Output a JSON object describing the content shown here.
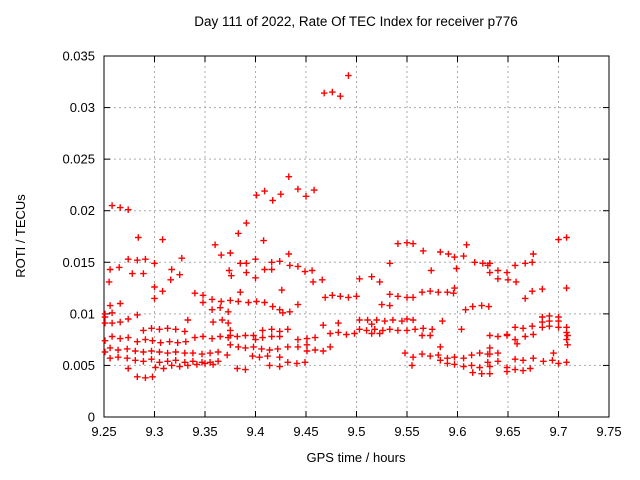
{
  "chart_data": {
    "type": "scatter",
    "title": "Day 111 of 2022, Rate Of TEC Index for receiver p776",
    "xlabel": "GPS time / hours",
    "ylabel": "ROTI / TECUs",
    "xlim": [
      9.25,
      9.75
    ],
    "ylim": [
      0,
      0.035
    ],
    "grid": true,
    "legend_position": "none",
    "marker": {
      "shape": "plus",
      "color": "#ff0000",
      "size": 6.6,
      "stroke_width": 1.4
    },
    "grid_color": "#aaaaaa",
    "axis_color": "#000000",
    "x_ticks": [
      {
        "value": 9.25,
        "label": "9.25"
      },
      {
        "value": 9.3,
        "label": "9.3"
      },
      {
        "value": 9.35,
        "label": "9.35"
      },
      {
        "value": 9.4,
        "label": "9.4"
      },
      {
        "value": 9.45,
        "label": "9.45"
      },
      {
        "value": 9.5,
        "label": "9.5"
      },
      {
        "value": 9.55,
        "label": "9.55"
      },
      {
        "value": 9.6,
        "label": "9.6"
      },
      {
        "value": 9.65,
        "label": "9.65"
      },
      {
        "value": 9.7,
        "label": "9.7"
      },
      {
        "value": 9.75,
        "label": "9.75"
      }
    ],
    "y_ticks": [
      {
        "value": 0,
        "label": "0"
      },
      {
        "value": 0.005,
        "label": "0.005"
      },
      {
        "value": 0.01,
        "label": "0.01"
      },
      {
        "value": 0.015,
        "label": "0.015"
      },
      {
        "value": 0.02,
        "label": "0.02"
      },
      {
        "value": 0.025,
        "label": "0.025"
      },
      {
        "value": 0.03,
        "label": "0.03"
      },
      {
        "value": 0.035,
        "label": "0.035"
      }
    ],
    "points": [
      [
        9.251,
        0.01
      ],
      [
        9.251,
        0.0097
      ],
      [
        9.251,
        0.0091
      ],
      [
        9.251,
        0.0074
      ],
      [
        9.251,
        0.0063
      ],
      [
        9.255,
        0.0131
      ],
      [
        9.256,
        0.0143
      ],
      [
        9.256,
        0.0108
      ],
      [
        9.256,
        0.0067
      ],
      [
        9.256,
        0.0057
      ],
      [
        9.258,
        0.0205
      ],
      [
        9.258,
        0.0101
      ],
      [
        9.258,
        0.0091
      ],
      [
        9.258,
        0.0078
      ],
      [
        9.265,
        0.0145
      ],
      [
        9.266,
        0.0203
      ],
      [
        9.266,
        0.011
      ],
      [
        9.266,
        0.0092
      ],
      [
        9.266,
        0.0076
      ],
      [
        9.264,
        0.0065
      ],
      [
        9.264,
        0.0058
      ],
      [
        9.274,
        0.0201
      ],
      [
        9.274,
        0.0153
      ],
      [
        9.278,
        0.0139
      ],
      [
        9.274,
        0.0095
      ],
      [
        9.274,
        0.0077
      ],
      [
        9.273,
        0.0066
      ],
      [
        9.273,
        0.0057
      ],
      [
        9.274,
        0.0047
      ],
      [
        9.284,
        0.0174
      ],
      [
        9.283,
        0.0152
      ],
      [
        9.283,
        0.0099
      ],
      [
        9.283,
        0.0073
      ],
      [
        9.281,
        0.0064
      ],
      [
        9.281,
        0.0055
      ],
      [
        9.283,
        0.0039
      ],
      [
        9.291,
        0.0153
      ],
      [
        9.289,
        0.0139
      ],
      [
        9.289,
        0.0084
      ],
      [
        9.291,
        0.0075
      ],
      [
        9.289,
        0.0063
      ],
      [
        9.289,
        0.0054
      ],
      [
        9.291,
        0.0038
      ],
      [
        9.3,
        0.0149
      ],
      [
        9.3,
        0.0126
      ],
      [
        9.3,
        0.0115
      ],
      [
        9.297,
        0.0086
      ],
      [
        9.298,
        0.0074
      ],
      [
        9.297,
        0.0064
      ],
      [
        9.297,
        0.0056
      ],
      [
        9.301,
        0.0048
      ],
      [
        9.298,
        0.0039
      ],
      [
        9.308,
        0.0172
      ],
      [
        9.308,
        0.0122
      ],
      [
        9.305,
        0.0085
      ],
      [
        9.306,
        0.0072
      ],
      [
        9.305,
        0.0063
      ],
      [
        9.305,
        0.0053
      ],
      [
        9.309,
        0.0047
      ],
      [
        9.317,
        0.0143
      ],
      [
        9.316,
        0.0133
      ],
      [
        9.313,
        0.0086
      ],
      [
        9.315,
        0.0073
      ],
      [
        9.313,
        0.0062
      ],
      [
        9.313,
        0.0054
      ],
      [
        9.317,
        0.005
      ],
      [
        9.327,
        0.0154
      ],
      [
        9.325,
        0.0138
      ],
      [
        9.321,
        0.0085
      ],
      [
        9.323,
        0.0072
      ],
      [
        9.321,
        0.0063
      ],
      [
        9.321,
        0.0055
      ],
      [
        9.325,
        0.0049
      ],
      [
        9.333,
        0.0094
      ],
      [
        9.33,
        0.0083
      ],
      [
        9.331,
        0.0073
      ],
      [
        9.33,
        0.0062
      ],
      [
        9.33,
        0.0053
      ],
      [
        9.333,
        0.005
      ],
      [
        9.34,
        0.012
      ],
      [
        9.34,
        0.0077
      ],
      [
        9.338,
        0.0062
      ],
      [
        9.338,
        0.0054
      ],
      [
        9.342,
        0.0051
      ],
      [
        9.348,
        0.0118
      ],
      [
        9.348,
        0.0111
      ],
      [
        9.348,
        0.0078
      ],
      [
        9.347,
        0.0061
      ],
      [
        9.347,
        0.0053
      ],
      [
        9.35,
        0.0052
      ],
      [
        9.36,
        0.0167
      ],
      [
        9.357,
        0.0114
      ],
      [
        9.357,
        0.0104
      ],
      [
        9.358,
        0.0092
      ],
      [
        9.357,
        0.0076
      ],
      [
        9.355,
        0.0062
      ],
      [
        9.355,
        0.0053
      ],
      [
        9.358,
        0.0051
      ],
      [
        9.366,
        0.0157
      ],
      [
        9.366,
        0.0112
      ],
      [
        9.365,
        0.0106
      ],
      [
        9.367,
        0.0094
      ],
      [
        9.365,
        0.0078
      ],
      [
        9.363,
        0.0063
      ],
      [
        9.363,
        0.0054
      ],
      [
        9.375,
        0.0159
      ],
      [
        9.374,
        0.0142
      ],
      [
        9.376,
        0.0137
      ],
      [
        9.375,
        0.0113
      ],
      [
        9.373,
        0.0102
      ],
      [
        9.373,
        0.0091
      ],
      [
        9.375,
        0.0084
      ],
      [
        9.375,
        0.0079
      ],
      [
        9.373,
        0.0077
      ],
      [
        9.375,
        0.007
      ],
      [
        9.372,
        0.006
      ],
      [
        9.383,
        0.0178
      ],
      [
        9.385,
        0.0149
      ],
      [
        9.385,
        0.0121
      ],
      [
        9.383,
        0.0112
      ],
      [
        9.382,
        0.0078
      ],
      [
        9.383,
        0.0068
      ],
      [
        9.382,
        0.0047
      ],
      [
        9.391,
        0.0188
      ],
      [
        9.391,
        0.0149
      ],
      [
        9.391,
        0.014
      ],
      [
        9.393,
        0.0111
      ],
      [
        9.39,
        0.0079
      ],
      [
        9.39,
        0.0067
      ],
      [
        9.39,
        0.0046
      ],
      [
        9.401,
        0.0215
      ],
      [
        9.4,
        0.0153
      ],
      [
        9.4,
        0.0135
      ],
      [
        9.401,
        0.0112
      ],
      [
        9.398,
        0.0079
      ],
      [
        9.4,
        0.0075
      ],
      [
        9.398,
        0.0068
      ],
      [
        9.397,
        0.0059
      ],
      [
        9.409,
        0.0219
      ],
      [
        9.408,
        0.0171
      ],
      [
        9.409,
        0.0143
      ],
      [
        9.409,
        0.0111
      ],
      [
        9.407,
        0.0084
      ],
      [
        9.407,
        0.0077
      ],
      [
        9.406,
        0.0066
      ],
      [
        9.404,
        0.0058
      ],
      [
        9.417,
        0.021
      ],
      [
        9.416,
        0.015
      ],
      [
        9.416,
        0.0143
      ],
      [
        9.417,
        0.0107
      ],
      [
        9.416,
        0.0085
      ],
      [
        9.416,
        0.0078
      ],
      [
        9.414,
        0.0065
      ],
      [
        9.412,
        0.0059
      ],
      [
        9.414,
        0.005
      ],
      [
        9.425,
        0.0216
      ],
      [
        9.424,
        0.0151
      ],
      [
        9.426,
        0.0123
      ],
      [
        9.424,
        0.0104
      ],
      [
        9.427,
        0.0101
      ],
      [
        9.424,
        0.0083
      ],
      [
        9.424,
        0.0078
      ],
      [
        9.422,
        0.0066
      ],
      [
        9.424,
        0.0058
      ],
      [
        9.424,
        0.0049
      ],
      [
        9.433,
        0.0233
      ],
      [
        9.433,
        0.0158
      ],
      [
        9.434,
        0.0147
      ],
      [
        9.434,
        0.0102
      ],
      [
        9.432,
        0.0085
      ],
      [
        9.432,
        0.0068
      ],
      [
        9.432,
        0.0053
      ],
      [
        9.442,
        0.0221
      ],
      [
        9.442,
        0.0146
      ],
      [
        9.442,
        0.0109
      ],
      [
        9.442,
        0.0075
      ],
      [
        9.442,
        0.0068
      ],
      [
        9.441,
        0.0052
      ],
      [
        9.45,
        0.0214
      ],
      [
        9.449,
        0.0141
      ],
      [
        9.451,
        0.0076
      ],
      [
        9.451,
        0.007
      ],
      [
        9.451,
        0.0064
      ],
      [
        9.449,
        0.0053
      ],
      [
        9.458,
        0.022
      ],
      [
        9.456,
        0.0142
      ],
      [
        9.457,
        0.0131
      ],
      [
        9.459,
        0.0077
      ],
      [
        9.459,
        0.0065
      ],
      [
        9.468,
        0.0314
      ],
      [
        9.466,
        0.0133
      ],
      [
        9.469,
        0.0116
      ],
      [
        9.467,
        0.0089
      ],
      [
        9.467,
        0.0064
      ],
      [
        9.476,
        0.0315
      ],
      [
        9.476,
        0.0118
      ],
      [
        9.474,
        0.0081
      ],
      [
        9.474,
        0.0068
      ],
      [
        9.484,
        0.0311
      ],
      [
        9.484,
        0.0117
      ],
      [
        9.482,
        0.0091
      ],
      [
        9.482,
        0.0082
      ],
      [
        9.492,
        0.0331
      ],
      [
        9.492,
        0.0116
      ],
      [
        9.49,
        0.008
      ],
      [
        9.5,
        0.0117
      ],
      [
        9.498,
        0.0081
      ],
      [
        9.503,
        0.0134
      ],
      [
        9.503,
        0.0094
      ],
      [
        9.503,
        0.0085
      ],
      [
        9.515,
        0.0136
      ],
      [
        9.511,
        0.0094
      ],
      [
        9.515,
        0.009
      ],
      [
        9.51,
        0.0084
      ],
      [
        9.515,
        0.0081
      ],
      [
        9.523,
        0.0131
      ],
      [
        9.525,
        0.0109
      ],
      [
        9.52,
        0.0094
      ],
      [
        9.528,
        0.0093
      ],
      [
        9.518,
        0.0085
      ],
      [
        9.526,
        0.0084
      ],
      [
        9.523,
        0.0081
      ],
      [
        9.533,
        0.0149
      ],
      [
        9.533,
        0.0119
      ],
      [
        9.533,
        0.0108
      ],
      [
        9.536,
        0.0094
      ],
      [
        9.533,
        0.0085
      ],
      [
        9.541,
        0.0168
      ],
      [
        9.541,
        0.0117
      ],
      [
        9.545,
        0.0093
      ],
      [
        9.541,
        0.0084
      ],
      [
        9.548,
        0.0062
      ],
      [
        9.55,
        0.0169
      ],
      [
        9.556,
        0.0168
      ],
      [
        9.55,
        0.0116
      ],
      [
        9.556,
        0.0116
      ],
      [
        9.55,
        0.0095
      ],
      [
        9.556,
        0.0094
      ],
      [
        9.55,
        0.0084
      ],
      [
        9.558,
        0.0085
      ],
      [
        9.556,
        0.0058
      ],
      [
        9.555,
        0.005
      ],
      [
        9.566,
        0.0161
      ],
      [
        9.574,
        0.0142
      ],
      [
        9.565,
        0.0121
      ],
      [
        9.573,
        0.0122
      ],
      [
        9.566,
        0.0086
      ],
      [
        9.575,
        0.0085
      ],
      [
        9.565,
        0.0079
      ],
      [
        9.573,
        0.0079
      ],
      [
        9.565,
        0.0061
      ],
      [
        9.573,
        0.0059
      ],
      [
        9.583,
        0.016
      ],
      [
        9.591,
        0.0158
      ],
      [
        9.581,
        0.0121
      ],
      [
        9.59,
        0.0121
      ],
      [
        9.585,
        0.0093
      ],
      [
        9.583,
        0.0068
      ],
      [
        9.581,
        0.006
      ],
      [
        9.59,
        0.0057
      ],
      [
        9.583,
        0.0055
      ],
      [
        9.59,
        0.0052
      ],
      [
        9.597,
        0.0155
      ],
      [
        9.606,
        0.0156
      ],
      [
        9.599,
        0.0144
      ],
      [
        9.597,
        0.0125
      ],
      [
        9.596,
        0.012
      ],
      [
        9.604,
        0.0085
      ],
      [
        9.597,
        0.0058
      ],
      [
        9.606,
        0.0057
      ],
      [
        9.597,
        0.0051
      ],
      [
        9.606,
        0.0049
      ],
      [
        9.609,
        0.0167
      ],
      [
        9.608,
        0.0104
      ],
      [
        9.615,
        0.0107
      ],
      [
        9.614,
        0.006
      ],
      [
        9.614,
        0.005
      ],
      [
        9.615,
        0.0043
      ],
      [
        9.617,
        0.015
      ],
      [
        9.625,
        0.0149
      ],
      [
        9.63,
        0.0147
      ],
      [
        9.624,
        0.0108
      ],
      [
        9.631,
        0.0107
      ],
      [
        9.622,
        0.0062
      ],
      [
        9.63,
        0.0061
      ],
      [
        9.63,
        0.0053
      ],
      [
        9.622,
        0.0048
      ],
      [
        9.624,
        0.0042
      ],
      [
        9.632,
        0.0149
      ],
      [
        9.632,
        0.014
      ],
      [
        9.64,
        0.0142
      ],
      [
        9.64,
        0.0134
      ],
      [
        9.632,
        0.0079
      ],
      [
        9.64,
        0.0078
      ],
      [
        9.632,
        0.0067
      ],
      [
        9.632,
        0.0061
      ],
      [
        9.64,
        0.0062
      ],
      [
        9.64,
        0.0054
      ],
      [
        9.632,
        0.0049
      ],
      [
        9.632,
        0.0042
      ],
      [
        9.657,
        0.0147
      ],
      [
        9.649,
        0.014
      ],
      [
        9.65,
        0.0133
      ],
      [
        9.658,
        0.0131
      ],
      [
        9.657,
        0.0087
      ],
      [
        9.649,
        0.008
      ],
      [
        9.649,
        0.0079
      ],
      [
        9.657,
        0.0075
      ],
      [
        9.659,
        0.0071
      ],
      [
        9.657,
        0.0056
      ],
      [
        9.649,
        0.0048
      ],
      [
        9.649,
        0.0044
      ],
      [
        9.657,
        0.0046
      ],
      [
        9.675,
        0.0158
      ],
      [
        9.667,
        0.0149
      ],
      [
        9.674,
        0.015
      ],
      [
        9.667,
        0.0115
      ],
      [
        9.674,
        0.0122
      ],
      [
        9.665,
        0.0086
      ],
      [
        9.674,
        0.0088
      ],
      [
        9.667,
        0.0078
      ],
      [
        9.675,
        0.008
      ],
      [
        9.665,
        0.0055
      ],
      [
        9.675,
        0.0057
      ],
      [
        9.665,
        0.0045
      ],
      [
        9.672,
        0.0047
      ],
      [
        9.684,
        0.0124
      ],
      [
        9.684,
        0.0097
      ],
      [
        9.691,
        0.0098
      ],
      [
        9.684,
        0.0092
      ],
      [
        9.691,
        0.0093
      ],
      [
        9.684,
        0.0087
      ],
      [
        9.691,
        0.0088
      ],
      [
        9.685,
        0.0054
      ],
      [
        9.694,
        0.0055
      ],
      [
        9.695,
        0.0062
      ],
      [
        9.7,
        0.0172
      ],
      [
        9.708,
        0.0174
      ],
      [
        9.708,
        0.0125
      ],
      [
        9.7,
        0.0097
      ],
      [
        9.7,
        0.0093
      ],
      [
        9.7,
        0.0087
      ],
      [
        9.708,
        0.0087
      ],
      [
        9.708,
        0.0082
      ],
      [
        9.709,
        0.0079
      ],
      [
        9.708,
        0.0075
      ],
      [
        9.709,
        0.007
      ],
      [
        9.7,
        0.0052
      ],
      [
        9.708,
        0.0053
      ]
    ]
  }
}
